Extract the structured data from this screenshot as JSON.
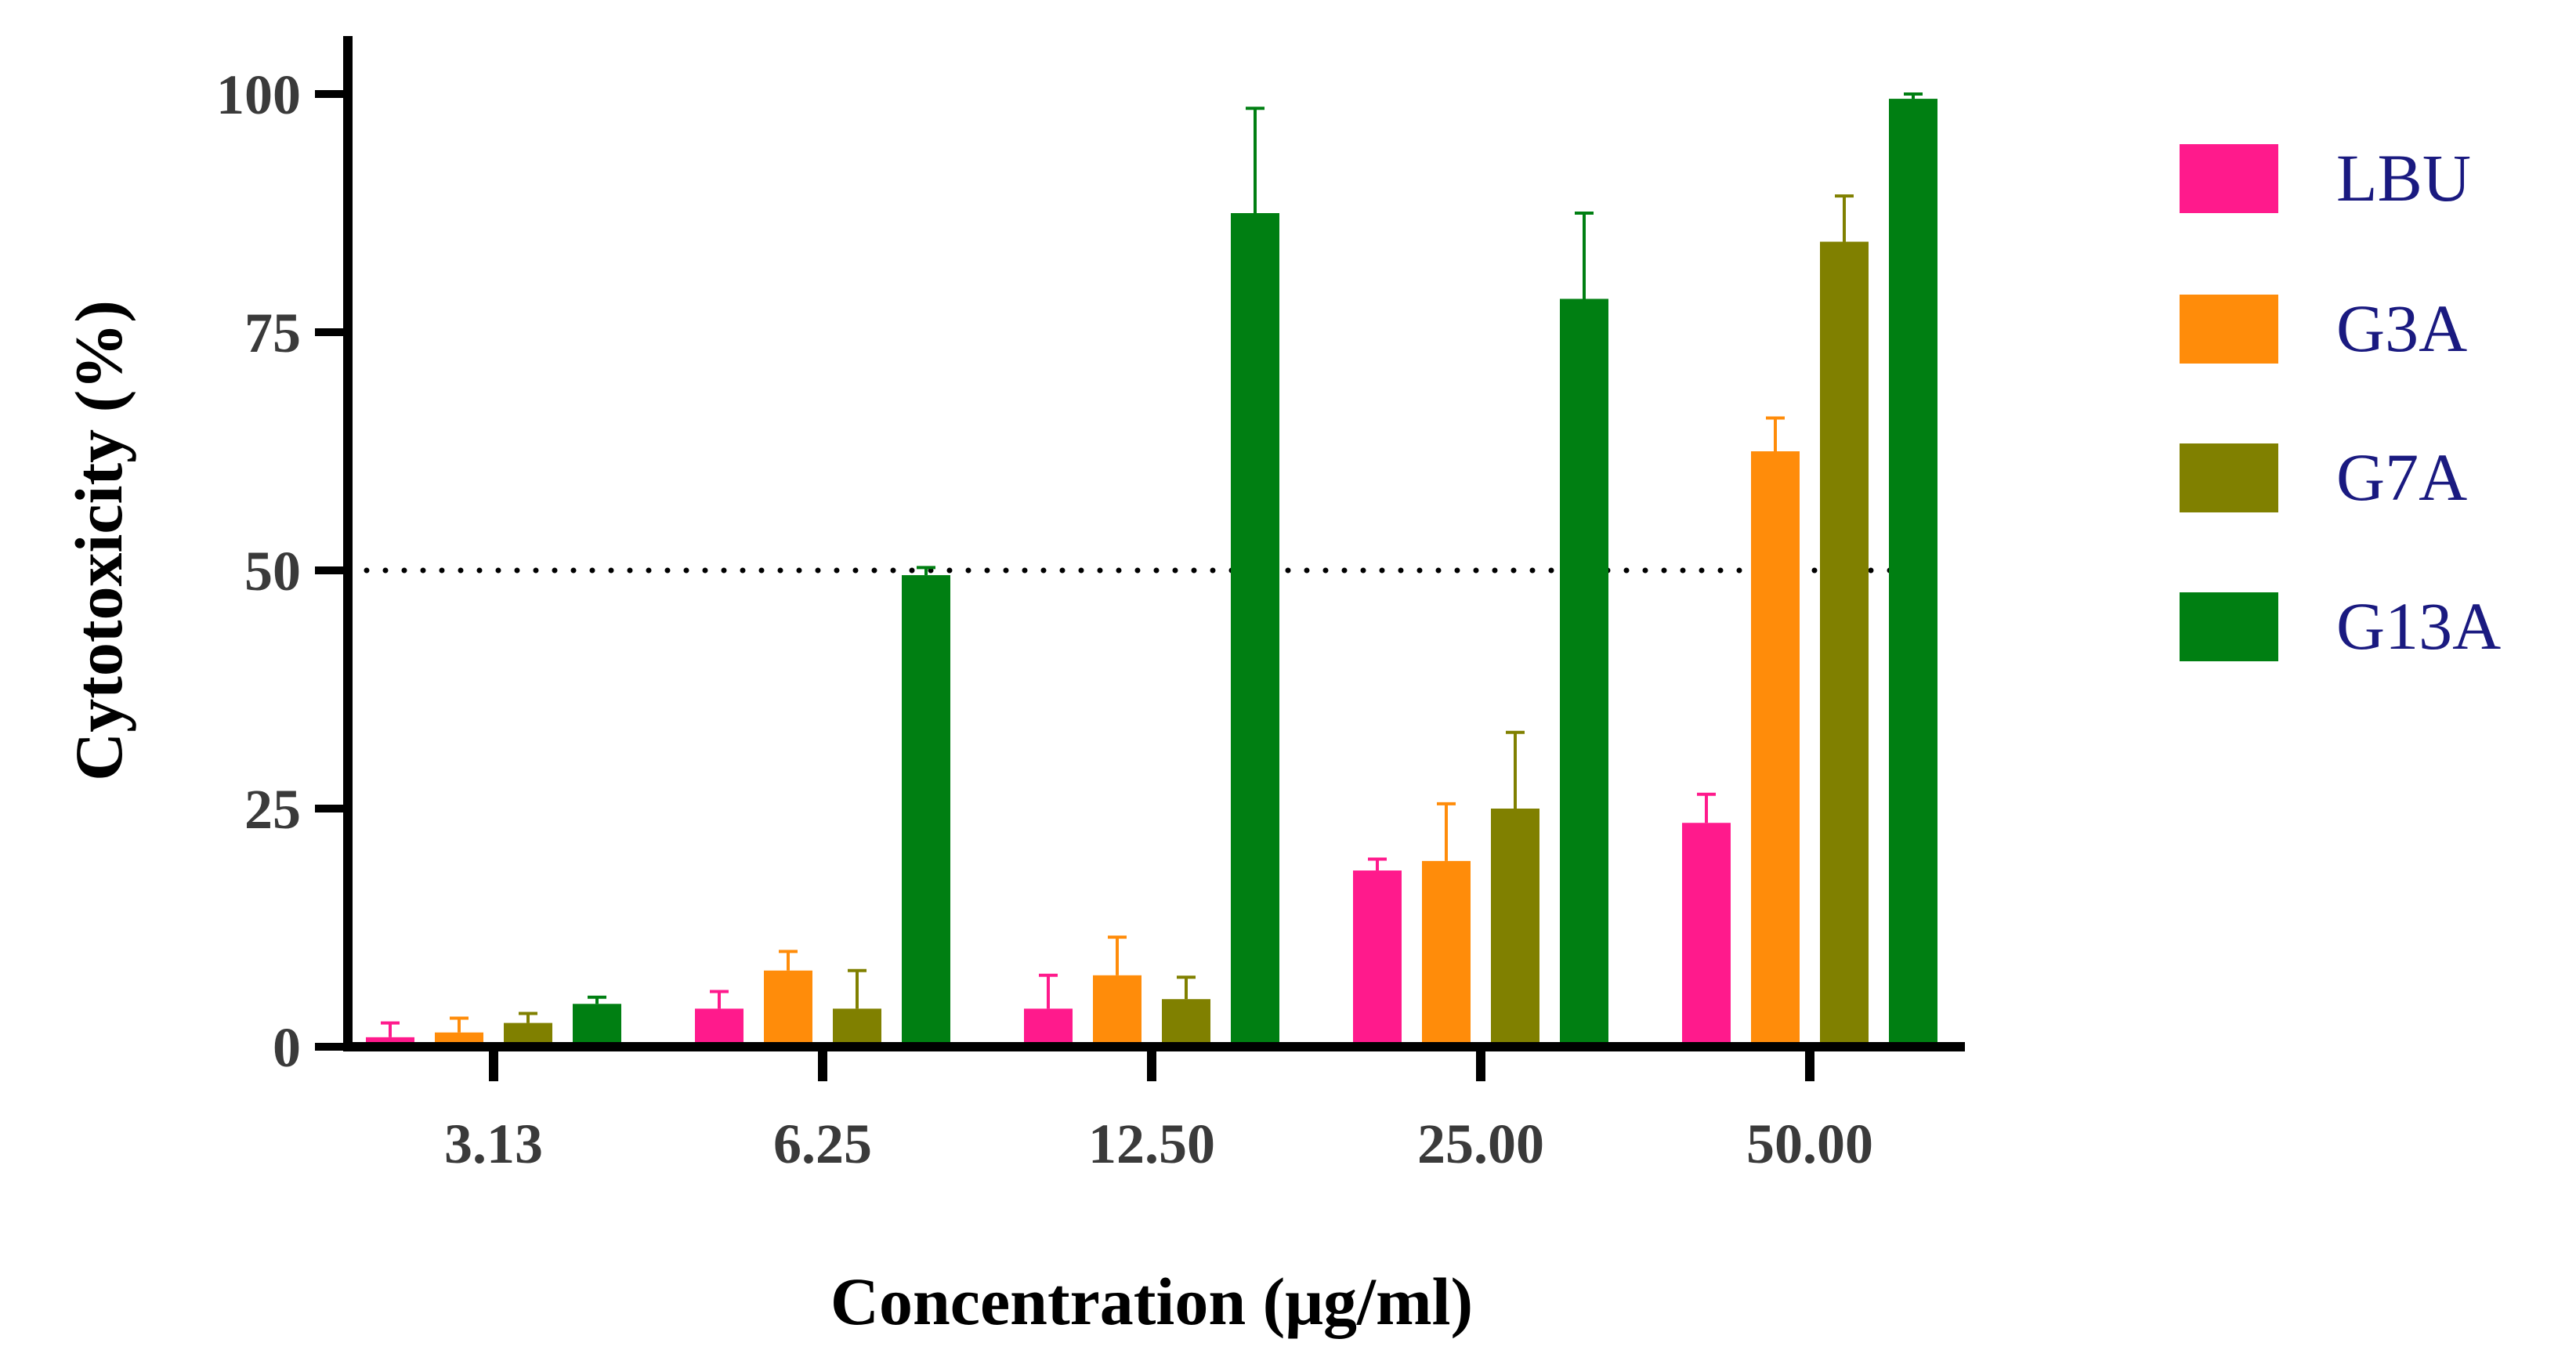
{
  "chart_data": {
    "type": "bar",
    "title": "",
    "xlabel": "Concentration (μg/ml)",
    "ylabel": "Cytotoxicity (%)",
    "ylim": [
      0,
      100
    ],
    "yticks": [
      "0",
      "25",
      "50",
      "75",
      "100"
    ],
    "categories": [
      "3.13",
      "6.25",
      "12.50",
      "25.00",
      "50.00"
    ],
    "reference_line": {
      "y": 50,
      "style": "dotted"
    },
    "legend_position": "right",
    "series": [
      {
        "name": "LBU",
        "color": "#ff1a8c",
        "values": [
          1.0,
          4.0,
          4.0,
          18.5,
          23.5
        ],
        "errors": [
          1.5,
          1.8,
          3.5,
          1.2,
          3.0
        ]
      },
      {
        "name": "G3A",
        "color": "#ff8c0a",
        "values": [
          1.5,
          8.0,
          7.5,
          19.5,
          62.5
        ],
        "errors": [
          1.5,
          2.0,
          4.0,
          6.0,
          3.5
        ]
      },
      {
        "name": "G7A",
        "color": "#808000",
        "values": [
          2.5,
          4.0,
          5.0,
          25.0,
          84.5
        ],
        "errors": [
          1.0,
          4.0,
          2.3,
          8.0,
          4.8
        ]
      },
      {
        "name": "G13A",
        "color": "#007f12",
        "values": [
          4.5,
          49.5,
          87.5,
          78.5,
          99.5
        ],
        "errors": [
          0.7,
          0.8,
          11.0,
          9.0,
          0.5
        ]
      }
    ]
  }
}
